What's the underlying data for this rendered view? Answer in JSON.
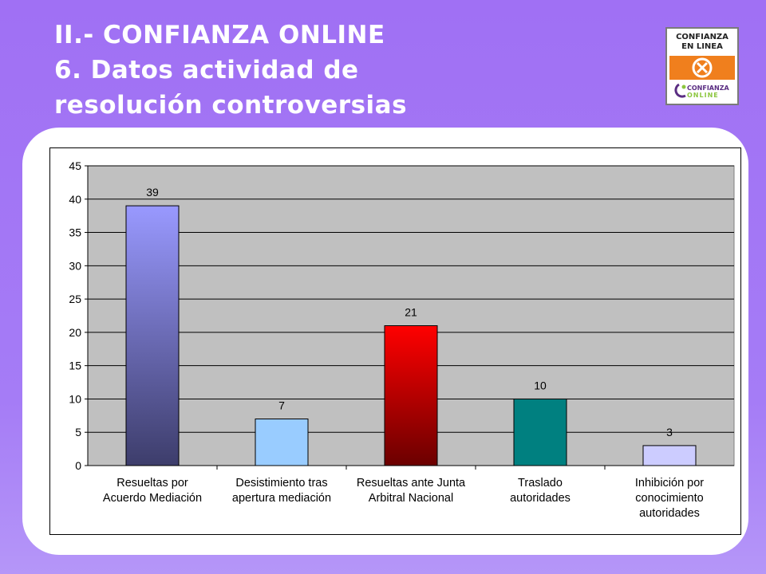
{
  "header": {
    "title_line1": "II.- CONFIANZA ONLINE",
    "title_line2": "6. Datos actividad de",
    "title_line3": "resolución controversias"
  },
  "logo": {
    "top_line1": "CONFIANZA",
    "top_line2": "EN LINEA",
    "bottom_line1": "CONFIANZA",
    "bottom_line2": "ONLINE"
  },
  "colors": {
    "background": "#a070f4",
    "plot_area": "#c0c0c0",
    "bar_colors": [
      "#9999ff",
      "#99ccff",
      "#ff0000",
      "#008080",
      "#ccccff"
    ]
  },
  "chart_data": {
    "type": "bar",
    "title": "",
    "xlabel": "",
    "ylabel": "",
    "categories": [
      [
        "Resueltas por",
        "Acuerdo Mediación"
      ],
      [
        "Desistimiento tras",
        "apertura mediación"
      ],
      [
        "Resueltas ante Junta",
        "Arbitral Nacional"
      ],
      [
        "Traslado",
        "autoridades"
      ],
      [
        "Inhibición por",
        "conocimiento",
        "autoridades"
      ]
    ],
    "values": [
      39,
      7,
      21,
      10,
      3
    ],
    "data_labels": [
      "39",
      "7",
      "21",
      "10",
      "3"
    ],
    "ylim": [
      0,
      45
    ],
    "yticks": [
      0,
      5,
      10,
      15,
      20,
      25,
      30,
      35,
      40,
      45
    ],
    "grid": true,
    "legend": "none"
  }
}
